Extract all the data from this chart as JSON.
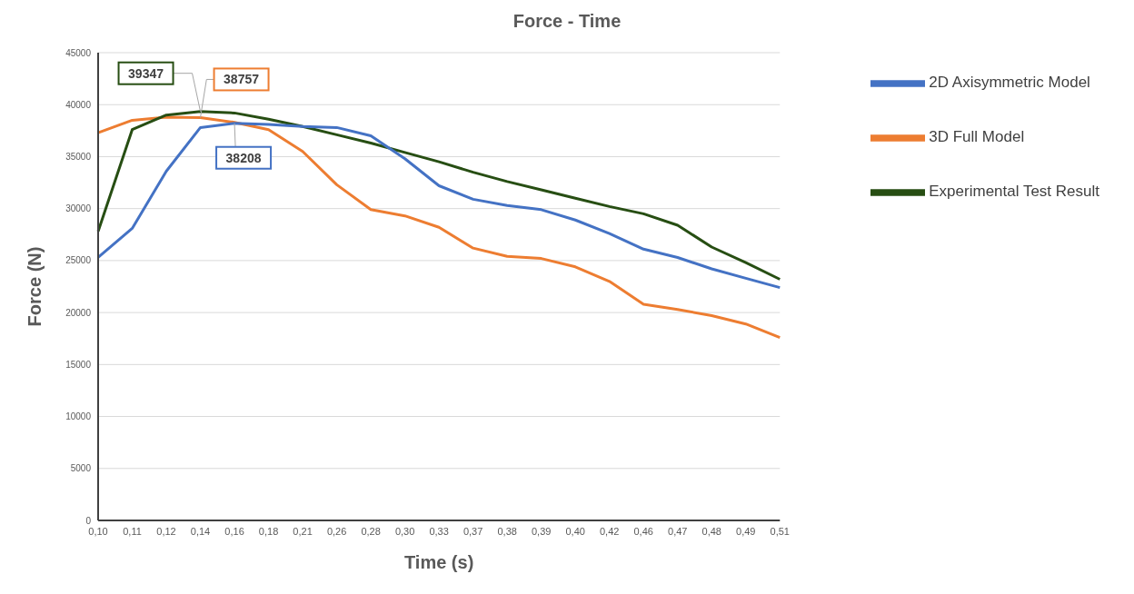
{
  "chart_data": {
    "type": "line",
    "title": "Force - Time",
    "xlabel": "Time (s)",
    "ylabel": "Force (N)",
    "categories": [
      "0,10",
      "0,11",
      "0,12",
      "0,14",
      "0,16",
      "0,18",
      "0,21",
      "0,26",
      "0,28",
      "0,30",
      "0,33",
      "0,37",
      "0,38",
      "0,39",
      "0,40",
      "0,42",
      "0,46",
      "0,47",
      "0,48",
      "0,49",
      "0,51"
    ],
    "series": [
      {
        "name": "3D Full Model",
        "color": "#ed7d31",
        "values": [
          37300,
          38500,
          38800,
          38757,
          38300,
          37600,
          35500,
          32300,
          29900,
          29300,
          28200,
          26200,
          25400,
          25200,
          24400,
          23000,
          20800,
          20300,
          19700,
          18900,
          17600
        ]
      },
      {
        "name": "Experimental Test Result",
        "color": "#274e13",
        "values": [
          27800,
          37600,
          39000,
          39347,
          39200,
          38600,
          37900,
          37100,
          36300,
          35400,
          34500,
          33500,
          32600,
          31800,
          31000,
          30200,
          29500,
          28400,
          26300,
          24800,
          23200
        ]
      },
      {
        "name": "2D Axisymmetric Model",
        "color": "#4472c4",
        "values": [
          25300,
          28100,
          33600,
          37800,
          38208,
          38100,
          37900,
          37800,
          37000,
          34800,
          32200,
          30900,
          30300,
          29900,
          28900,
          27600,
          26100,
          25300,
          24200,
          23300,
          22400
        ]
      }
    ],
    "ylim": [
      0,
      45000
    ],
    "yticks": [
      0,
      5000,
      10000,
      15000,
      20000,
      25000,
      30000,
      35000,
      40000,
      45000
    ],
    "grid": "y",
    "legend": "top right",
    "marker": "none",
    "line_style": "solid",
    "annotations": [
      {
        "text": "39347",
        "x": "0,14",
        "y": 39347
      },
      {
        "text": "38757",
        "x": "0,14",
        "y": 38757
      },
      {
        "text": "38208",
        "x": "0,16",
        "y": 38208
      }
    ]
  }
}
